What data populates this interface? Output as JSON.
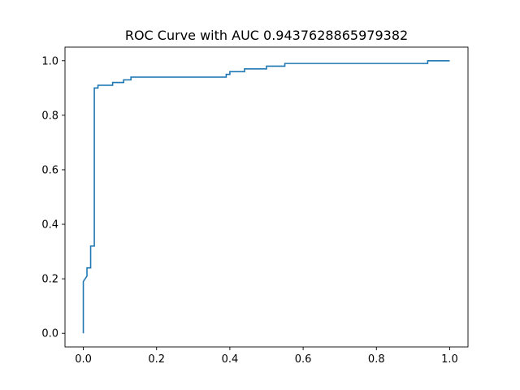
{
  "chart_data": {
    "type": "line",
    "title": "ROC Curve with AUC 0.9437628865979382",
    "xlabel": "",
    "ylabel": "",
    "xlim": [
      -0.05,
      1.05
    ],
    "ylim": [
      -0.05,
      1.05
    ],
    "x_ticks": [
      0.0,
      0.2,
      0.4,
      0.6,
      0.8,
      1.0
    ],
    "y_ticks": [
      0.0,
      0.2,
      0.4,
      0.6,
      0.8,
      1.0
    ],
    "x_tick_labels": [
      "0.0",
      "0.2",
      "0.4",
      "0.6",
      "0.8",
      "1.0"
    ],
    "y_tick_labels": [
      "0.0",
      "0.2",
      "0.4",
      "0.6",
      "0.8",
      "1.0"
    ],
    "grid": false,
    "legend": false,
    "series": [
      {
        "color": "#1f77b4",
        "x": [
          0.0,
          0.0,
          0.01,
          0.01,
          0.02,
          0.02,
          0.03,
          0.03,
          0.04,
          0.04,
          0.08,
          0.08,
          0.11,
          0.11,
          0.13,
          0.13,
          0.39,
          0.39,
          0.4,
          0.4,
          0.44,
          0.44,
          0.5,
          0.5,
          0.55,
          0.55,
          0.94,
          0.94,
          1.0
        ],
        "y": [
          0.0,
          0.19,
          0.21,
          0.24,
          0.24,
          0.32,
          0.32,
          0.9,
          0.9,
          0.91,
          0.91,
          0.92,
          0.92,
          0.93,
          0.93,
          0.94,
          0.94,
          0.95,
          0.95,
          0.96,
          0.96,
          0.97,
          0.97,
          0.98,
          0.98,
          0.99,
          0.99,
          1.0,
          1.0
        ]
      }
    ]
  }
}
